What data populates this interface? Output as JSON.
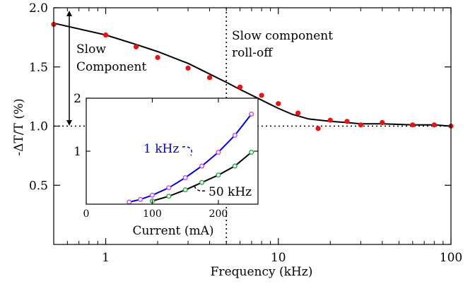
{
  "chart_data": [
    {
      "type": "scatter",
      "role": "main",
      "xlabel": "Frequency (kHz)",
      "ylabel": "-ΔT/T (%)",
      "xscale": "log",
      "xlim": [
        0.5,
        100
      ],
      "ylim": [
        0.0,
        2.0
      ],
      "xticks": [
        {
          "v": 1,
          "label": "1"
        },
        {
          "v": 10,
          "label": "10"
        },
        {
          "v": 100,
          "label": "100"
        }
      ],
      "yticks": [
        {
          "v": 0.5,
          "label": "0.5"
        },
        {
          "v": 1.0,
          "label": "1.0"
        },
        {
          "v": 1.5,
          "label": "1.5"
        },
        {
          "v": 2.0,
          "label": "2.0"
        }
      ],
      "grid": false,
      "series": [
        {
          "marker_color": "#ee1111",
          "x": [
            0.5,
            1,
            1.5,
            2,
            3,
            4,
            6,
            8,
            10,
            13,
            17,
            20,
            25,
            30,
            40,
            60,
            80,
            100
          ],
          "y": [
            1.86,
            1.77,
            1.67,
            1.58,
            1.49,
            1.41,
            1.33,
            1.26,
            1.19,
            1.11,
            0.98,
            1.05,
            1.04,
            1.01,
            1.03,
            1.01,
            1.01,
            1.0
          ]
        }
      ],
      "fit_curve": {
        "x": [
          0.5,
          1,
          1.5,
          2,
          3,
          4,
          5,
          6,
          8,
          10,
          12,
          15,
          20,
          25,
          30,
          40,
          60,
          80,
          100
        ],
        "y": [
          1.87,
          1.77,
          1.69,
          1.63,
          1.53,
          1.44,
          1.37,
          1.31,
          1.22,
          1.15,
          1.1,
          1.06,
          1.04,
          1.03,
          1.02,
          1.02,
          1.01,
          1.01,
          1.0
        ]
      },
      "reference_line_y": 1.0,
      "vline_x": 5,
      "annotations": [
        {
          "id": "slow",
          "lines": [
            "Slow",
            "Component"
          ]
        },
        {
          "id": "rolloff",
          "lines": [
            "Slow component",
            "roll-off"
          ]
        }
      ]
    },
    {
      "type": "line",
      "role": "inset",
      "xlabel": "Current (mA)",
      "ylabel": "",
      "xlim": [
        0,
        260
      ],
      "ylim": [
        0,
        2.0
      ],
      "xticks": [
        {
          "v": 0,
          "label": "0"
        },
        {
          "v": 100,
          "label": "100"
        },
        {
          "v": 200,
          "label": "200"
        }
      ],
      "yticks": [
        {
          "v": 1,
          "label": "1"
        },
        {
          "v": 2,
          "label": "2"
        }
      ],
      "series": [
        {
          "name": "1 kHz",
          "color": "#0000dd",
          "marker_color": "#cc44ee",
          "x": [
            65,
            82,
            100,
            125,
            150,
            175,
            200,
            225,
            250
          ],
          "y": [
            0.04,
            0.09,
            0.17,
            0.31,
            0.5,
            0.72,
            0.98,
            1.3,
            1.7
          ]
        },
        {
          "name": "50 kHz",
          "color": "#000000",
          "marker_color": "#22aa44",
          "x": [
            100,
            125,
            150,
            175,
            200,
            225,
            250
          ],
          "y": [
            0.06,
            0.15,
            0.27,
            0.41,
            0.55,
            0.72,
            0.98
          ]
        }
      ]
    }
  ]
}
